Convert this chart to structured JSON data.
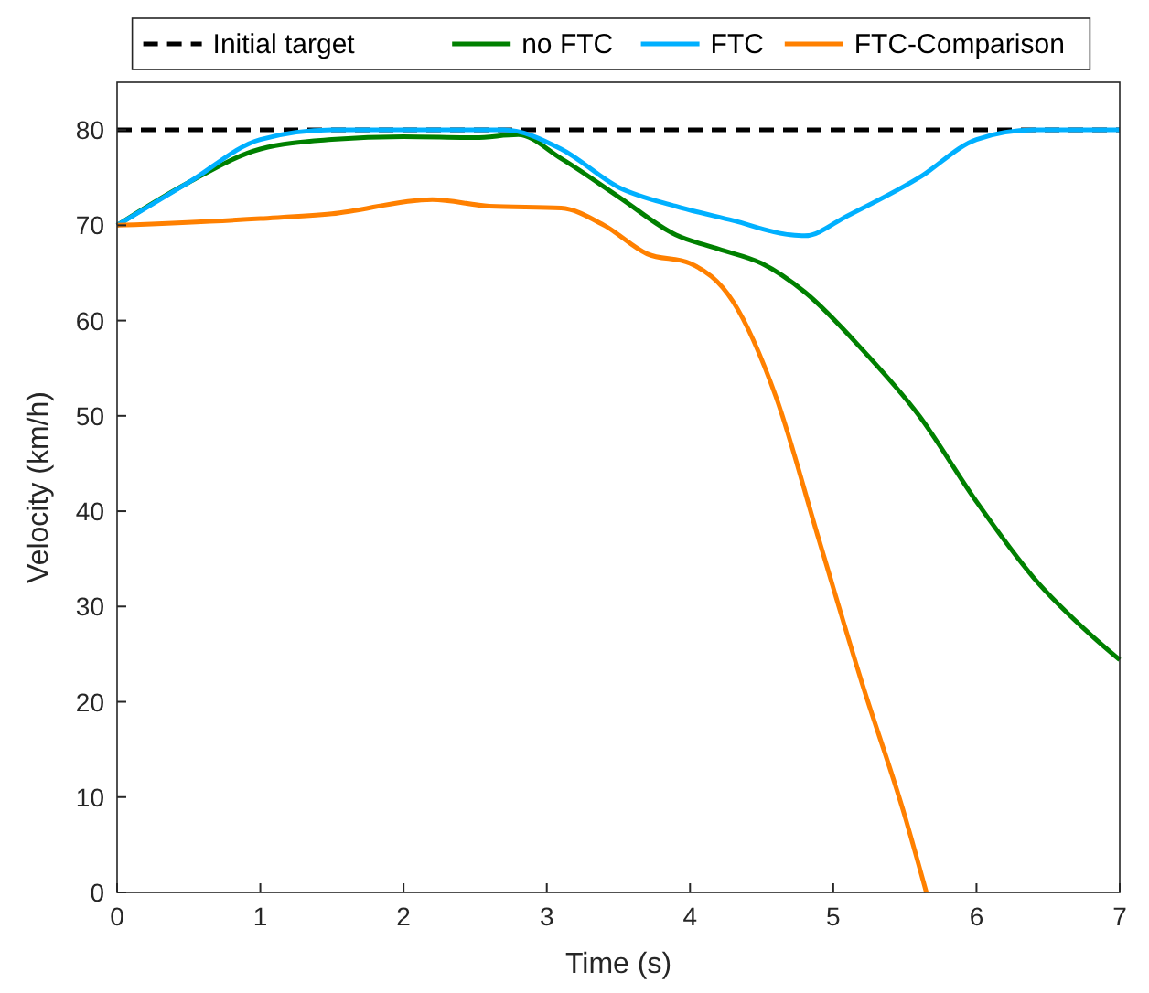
{
  "chart_data": {
    "type": "line",
    "xlabel": "Time (s)",
    "ylabel": "Velocity (km/h)",
    "xlim": [
      0,
      7
    ],
    "ylim": [
      0,
      85
    ],
    "xticks": [
      0,
      1,
      2,
      3,
      4,
      5,
      6,
      7
    ],
    "yticks": [
      0,
      10,
      20,
      30,
      40,
      50,
      60,
      70,
      80
    ],
    "legend": "top",
    "grid": false,
    "line_style": "solid",
    "marker": "none",
    "ref_lines": [
      {
        "axis": "y",
        "value": 80,
        "label": "Initial target",
        "color": "#000000",
        "line_style": "dashed"
      }
    ],
    "series": [
      {
        "name": "no FTC",
        "color": "#008000",
        "x": [
          0,
          0.5,
          1,
          1.5,
          2,
          2.5,
          2.8,
          3.1,
          3.5,
          3.9,
          4.2,
          4.5,
          4.8,
          5.2,
          5.6,
          6,
          6.4,
          6.8,
          7
        ],
        "values": [
          70,
          74.5,
          78,
          79,
          79.3,
          79.2,
          79.5,
          77,
          73,
          69,
          67.5,
          66,
          63,
          57,
          50,
          41,
          33,
          27,
          24.4
        ]
      },
      {
        "name": "FTC",
        "color": "#00b0ff",
        "x": [
          0,
          0.5,
          1,
          1.5,
          2,
          2.5,
          2.7,
          3.1,
          3.5,
          3.9,
          4.3,
          4.7,
          4.8,
          5.1,
          5.6,
          6,
          6.4,
          7
        ],
        "values": [
          70,
          74.5,
          79,
          80,
          80,
          80,
          80,
          78,
          74,
          72,
          70.5,
          69,
          68.9,
          71,
          75,
          79,
          80,
          80
        ]
      },
      {
        "name": "FTC-Comparison",
        "color": "#ff8000",
        "x": [
          0,
          1,
          1.5,
          2.2,
          2.6,
          3.1,
          3.4,
          3.7,
          4,
          4.3,
          4.6,
          4.9,
          5.2,
          5.5,
          5.65
        ],
        "values": [
          70,
          70.7,
          71.2,
          72.7,
          72,
          71.8,
          70,
          67,
          66,
          62,
          52,
          37,
          22,
          8,
          0
        ]
      }
    ]
  }
}
